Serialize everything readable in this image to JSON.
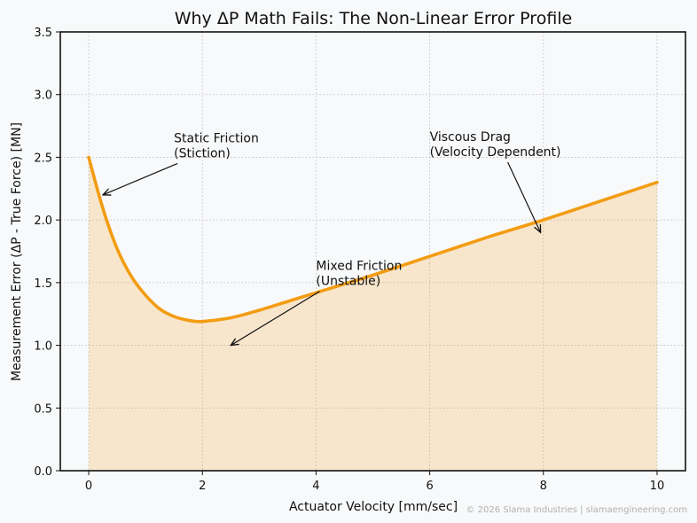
{
  "chart_data": {
    "type": "line",
    "title": "Why ΔP Math Fails: The Non-Linear Error Profile",
    "xlabel": "Actuator Velocity [mm/sec]",
    "ylabel": "Measurement Error (ΔP - True Force) [MN]",
    "xlim": [
      -0.5,
      10.5
    ],
    "ylim": [
      0,
      3.5
    ],
    "xticks": [
      0,
      2,
      4,
      6,
      8,
      10
    ],
    "xtick_labels": [
      "0",
      "2",
      "4",
      "6",
      "8",
      "10"
    ],
    "yticks": [
      0,
      0.5,
      1,
      1.5,
      2,
      2.5,
      3,
      3.5
    ],
    "ytick_labels": [
      "0.0",
      "0.5",
      "1.0",
      "1.5",
      "2.0",
      "2.5",
      "3.0",
      "3.5"
    ],
    "grid": true,
    "fill_under": true,
    "series": [
      {
        "color": "#f39c12",
        "x": [
          0,
          0.25,
          0.5,
          0.75,
          1,
          1.25,
          1.5,
          1.75,
          2,
          2.5,
          3,
          3.5,
          4,
          5,
          6,
          7,
          8,
          9,
          10
        ],
        "y": [
          2.5,
          2.09,
          1.77,
          1.55,
          1.4,
          1.29,
          1.23,
          1.2,
          1.19,
          1.22,
          1.28,
          1.35,
          1.42,
          1.56,
          1.71,
          1.86,
          2.0,
          2.15,
          2.3
        ]
      }
    ],
    "annotations": [
      {
        "lines": [
          "Static Friction",
          "(Stiction)"
        ],
        "text_x": 1.5,
        "text_y": 2.62,
        "arrow_x": 0.25,
        "arrow_y": 2.2
      },
      {
        "lines": [
          "Mixed Friction",
          "(Unstable)"
        ],
        "text_x": 4.0,
        "text_y": 1.6,
        "arrow_x": 2.5,
        "arrow_y": 1.0
      },
      {
        "lines": [
          "Viscous Drag",
          "(Velocity Dependent)"
        ],
        "text_x": 6.0,
        "text_y": 2.63,
        "arrow_x": 7.95,
        "arrow_y": 1.9
      }
    ]
  },
  "watermark": "© 2026 Slama Industries | slamaengineering.com"
}
